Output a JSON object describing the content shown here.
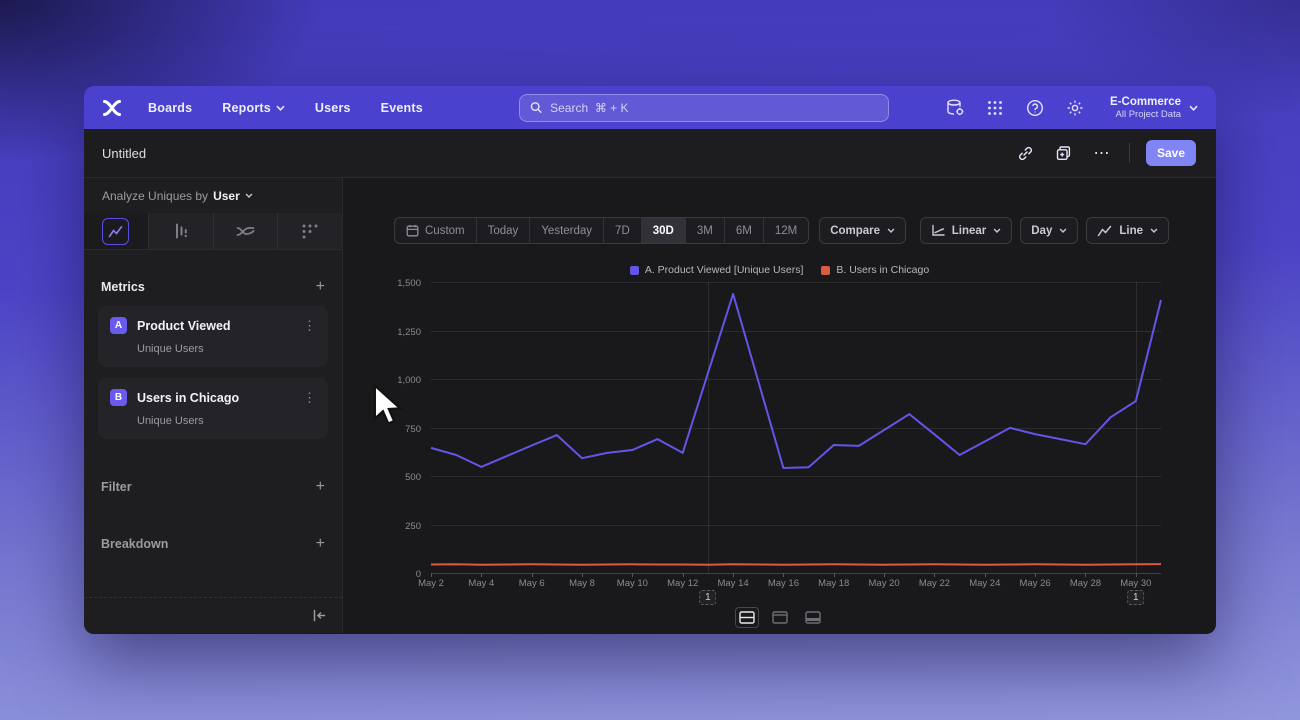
{
  "navbar": {
    "items": [
      {
        "label": "Boards",
        "chevron": false
      },
      {
        "label": "Reports",
        "chevron": true
      },
      {
        "label": "Users",
        "chevron": false
      },
      {
        "label": "Events",
        "chevron": false
      }
    ],
    "search": {
      "placeholder": "Search  ⌘ + K"
    },
    "project": {
      "name": "E-Commerce",
      "scope": "All Project Data"
    }
  },
  "titlebar": {
    "title": "Untitled",
    "more_label": "⋯",
    "save_label": "Save"
  },
  "sidebar": {
    "analyze_prefix": "Analyze Uniques by",
    "analyze_value": "User",
    "metrics": {
      "label": "Metrics",
      "add": "+",
      "kebab": "⋮",
      "items": [
        {
          "badge": "A",
          "name": "Product Viewed",
          "sub": "Unique Users"
        },
        {
          "badge": "B",
          "name": "Users in Chicago",
          "sub": "Unique Users"
        }
      ]
    },
    "filter": {
      "label": "Filter",
      "add": "+"
    },
    "breakdown": {
      "label": "Breakdown",
      "add": "+"
    }
  },
  "toolbar": {
    "ranges": [
      "Custom",
      "Today",
      "Yesterday",
      "7D",
      "30D",
      "3M",
      "6M",
      "12M"
    ],
    "selected_range": "30D",
    "compare_label": "Compare",
    "scale_label": "Linear",
    "granularity_label": "Day",
    "chart_type_label": "Line"
  },
  "chart_data": {
    "type": "line",
    "x": [
      "May 2",
      "May 3",
      "May 4",
      "May 5",
      "May 6",
      "May 7",
      "May 8",
      "May 9",
      "May 10",
      "May 11",
      "May 12",
      "May 13",
      "May 14",
      "May 15",
      "May 16",
      "May 17",
      "May 18",
      "May 19",
      "May 20",
      "May 21",
      "May 22",
      "May 23",
      "May 24",
      "May 25",
      "May 26",
      "May 27",
      "May 28",
      "May 29",
      "May 30",
      "May 31"
    ],
    "x_tick_every": 2,
    "ylim": [
      0,
      1500
    ],
    "y_ticks": [
      {
        "v": 0,
        "label": "0"
      },
      {
        "v": 250,
        "label": "250"
      },
      {
        "v": 500,
        "label": "500"
      },
      {
        "v": 750,
        "label": "750"
      },
      {
        "v": 1000,
        "label": "1,000"
      },
      {
        "v": 1250,
        "label": "1,250"
      },
      {
        "v": 1500,
        "label": "1,500"
      }
    ],
    "series": [
      {
        "name": "A. Product Viewed [Unique Users]",
        "color": "#6355e8",
        "values": [
          645,
          608,
          547,
          602,
          657,
          711,
          592,
          619,
          634,
          690,
          619,
          1030,
          1438,
          990,
          541,
          545,
          660,
          655,
          737,
          819,
          715,
          608,
          678,
          748,
          716,
          690,
          664,
          803,
          886,
          1407
        ]
      },
      {
        "name": "B. Users in Chicago",
        "color": "#db5a42",
        "values": [
          44,
          45,
          43,
          44,
          45,
          44,
          43,
          44,
          45,
          44,
          44,
          43,
          45,
          44,
          43,
          44,
          45,
          44,
          43,
          44,
          45,
          44,
          43,
          44,
          45,
          44,
          43,
          44,
          45,
          46
        ]
      }
    ],
    "annotations": [
      {
        "label": "1",
        "x_index": 11
      },
      {
        "label": "1",
        "x_index": 28
      }
    ],
    "legend_position": "top-center",
    "grid": "horizontal"
  }
}
